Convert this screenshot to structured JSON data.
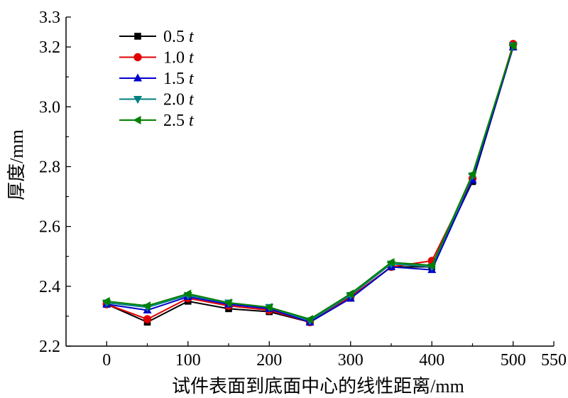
{
  "chart_data": {
    "type": "line",
    "title": "",
    "xlabel": "试件表面到底面中心的线性距离/mm",
    "ylabel": "厚度/mm",
    "xlim": [
      -50,
      550
    ],
    "ylim": [
      2.2,
      3.3
    ],
    "xticks": [
      "0",
      "100",
      "200",
      "300",
      "400",
      "500",
      "550"
    ],
    "yticks": [
      "2.2",
      "2.4",
      "2.6",
      "2.8",
      "3.0",
      "3.2",
      "3.3"
    ],
    "x": [
      0,
      50,
      100,
      150,
      200,
      250,
      300,
      350,
      400,
      450,
      500
    ],
    "legend_position": "top-left",
    "grid": false,
    "series": [
      {
        "name": "0.5",
        "name_suffix": "t",
        "color": "#000000",
        "marker": "square",
        "values": [
          2.34,
          2.28,
          2.35,
          2.325,
          2.315,
          2.28,
          2.36,
          2.465,
          2.465,
          2.75,
          3.2
        ]
      },
      {
        "name": "1.0",
        "name_suffix": "t",
        "color": "#e00000",
        "marker": "circle",
        "values": [
          2.34,
          2.29,
          2.36,
          2.335,
          2.32,
          2.28,
          2.365,
          2.465,
          2.485,
          2.76,
          3.21
        ]
      },
      {
        "name": "1.5",
        "name_suffix": "t",
        "color": "#0000cc",
        "marker": "triangle-up",
        "values": [
          2.34,
          2.32,
          2.365,
          2.34,
          2.325,
          2.28,
          2.36,
          2.465,
          2.455,
          2.755,
          3.2
        ]
      },
      {
        "name": "2.0",
        "name_suffix": "t",
        "color": "#008080",
        "marker": "triangle-down",
        "values": [
          2.345,
          2.33,
          2.37,
          2.345,
          2.33,
          2.285,
          2.37,
          2.475,
          2.465,
          2.77,
          3.205
        ]
      },
      {
        "name": "2.5",
        "name_suffix": "t",
        "color": "#008000",
        "marker": "triangle-left",
        "values": [
          2.35,
          2.335,
          2.375,
          2.345,
          2.33,
          2.29,
          2.375,
          2.48,
          2.47,
          2.775,
          3.205
        ]
      }
    ]
  }
}
